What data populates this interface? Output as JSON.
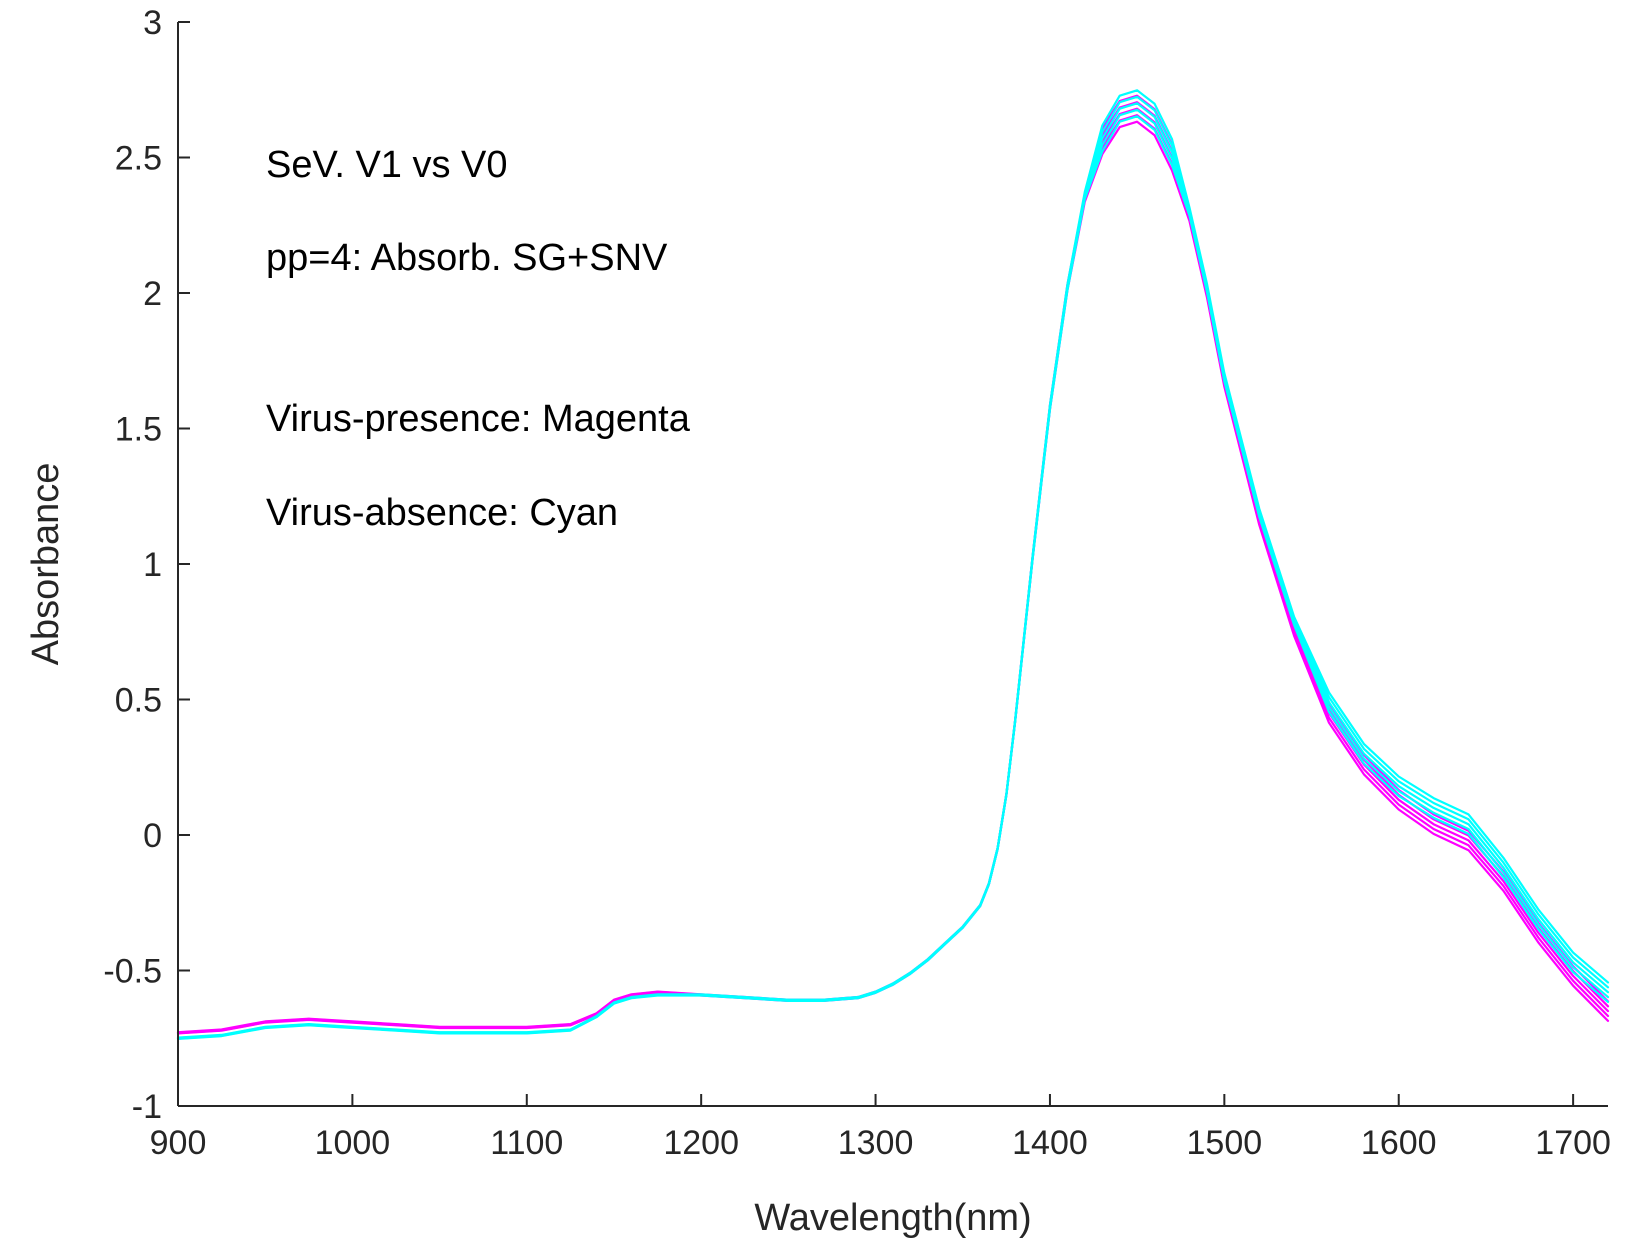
{
  "chart_data": {
    "type": "line",
    "title": "",
    "xlabel": "Wavelength(nm)",
    "ylabel": "Absorbance",
    "xlim": [
      900,
      1720
    ],
    "ylim": [
      -1,
      3
    ],
    "xticks": [
      900,
      1000,
      1100,
      1200,
      1300,
      1400,
      1500,
      1600,
      1700
    ],
    "yticks": [
      -1,
      -0.5,
      0,
      0.5,
      1,
      1.5,
      2,
      2.5,
      3
    ],
    "grid": false,
    "annotations": [
      "SeV. V1 vs V0",
      "pp=4: Absorb. SG+SNV",
      "Virus-presence: Magenta",
      "Virus-absence:  Cyan"
    ],
    "colors": {
      "magenta": "#ff00ff",
      "cyan": "#00ffff",
      "axis": "#262626"
    },
    "x": [
      900,
      925,
      950,
      975,
      1000,
      1025,
      1050,
      1075,
      1100,
      1125,
      1140,
      1150,
      1160,
      1175,
      1200,
      1225,
      1250,
      1270,
      1290,
      1300,
      1310,
      1320,
      1330,
      1340,
      1350,
      1360,
      1365,
      1370,
      1375,
      1380,
      1385,
      1390,
      1395,
      1400,
      1410,
      1420,
      1430,
      1440,
      1450,
      1460,
      1470,
      1480,
      1490,
      1500,
      1520,
      1540,
      1560,
      1580,
      1600,
      1620,
      1640,
      1660,
      1680,
      1700,
      1720
    ],
    "series": [
      {
        "name": "Virus-presence",
        "color": "#ff00ff",
        "values": [
          -0.73,
          -0.72,
          -0.69,
          -0.68,
          -0.69,
          -0.7,
          -0.71,
          -0.71,
          -0.71,
          -0.7,
          -0.66,
          -0.61,
          -0.59,
          -0.58,
          -0.59,
          -0.6,
          -0.61,
          -0.61,
          -0.6,
          -0.58,
          -0.55,
          -0.51,
          -0.46,
          -0.4,
          -0.34,
          -0.26,
          -0.18,
          -0.05,
          0.15,
          0.42,
          0.72,
          1.02,
          1.3,
          1.58,
          2.02,
          2.35,
          2.56,
          2.66,
          2.68,
          2.63,
          2.5,
          2.28,
          2.0,
          1.67,
          1.16,
          0.75,
          0.45,
          0.26,
          0.13,
          0.04,
          -0.02,
          -0.17,
          -0.36,
          -0.52,
          -0.65
        ]
      },
      {
        "name": "Virus-absence",
        "color": "#00ffff",
        "values": [
          -0.75,
          -0.74,
          -0.71,
          -0.7,
          -0.71,
          -0.72,
          -0.73,
          -0.73,
          -0.73,
          -0.72,
          -0.67,
          -0.62,
          -0.6,
          -0.59,
          -0.59,
          -0.6,
          -0.61,
          -0.61,
          -0.6,
          -0.58,
          -0.55,
          -0.51,
          -0.46,
          -0.4,
          -0.34,
          -0.26,
          -0.18,
          -0.05,
          0.15,
          0.42,
          0.72,
          1.02,
          1.3,
          1.58,
          2.02,
          2.36,
          2.57,
          2.68,
          2.7,
          2.65,
          2.52,
          2.3,
          2.02,
          1.69,
          1.19,
          0.79,
          0.49,
          0.3,
          0.18,
          0.1,
          0.04,
          -0.12,
          -0.31,
          -0.47,
          -0.58
        ]
      }
    ],
    "offsets": [
      -0.03,
      -0.015,
      0,
      0.015,
      0.03
    ]
  }
}
